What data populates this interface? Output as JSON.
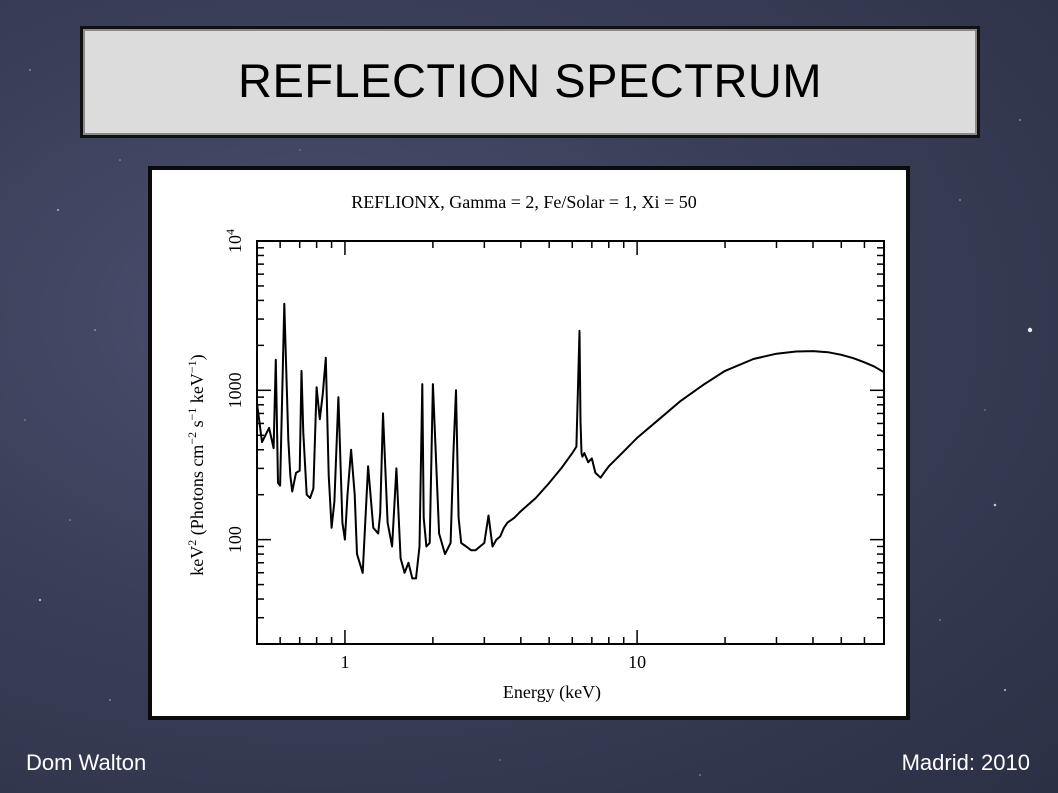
{
  "slide": {
    "title": "REFLECTION SPECTRUM",
    "author": "Dom Walton",
    "venue": "Madrid: 2010"
  },
  "colors": {
    "background": "#363b52",
    "title_box": "#dcdcdc",
    "text_light": "#ffffff",
    "plot_line": "#000000"
  },
  "chart_data": {
    "type": "line",
    "title": "REFLIONX, Gamma = 2, Fe/Solar = 1, Xi = 50",
    "xlabel": "Energy (keV)",
    "ylabel_parts": {
      "main": "keV",
      "sup1": "2",
      "mid": " (Photons cm",
      "sup2": "−2",
      "mid2": " s",
      "sup3": "−1",
      "mid3": " keV",
      "sup4": "−1",
      "end": ")"
    },
    "xscale": "log",
    "yscale": "log",
    "xlim": [
      0.5,
      70
    ],
    "ylim": [
      20,
      10000
    ],
    "x_tick_labels": [
      {
        "value": 1,
        "label": "1"
      },
      {
        "value": 10,
        "label": "10"
      }
    ],
    "y_tick_labels": [
      {
        "value": 100,
        "label": "100"
      },
      {
        "value": 1000,
        "label": "1000"
      },
      {
        "value": 10000,
        "label": "10",
        "sup": "4"
      }
    ],
    "grid": false,
    "series": [
      {
        "x": [
          0.5,
          0.52,
          0.55,
          0.57,
          0.58,
          0.59,
          0.6,
          0.62,
          0.64,
          0.65,
          0.66,
          0.68,
          0.7,
          0.71,
          0.72,
          0.74,
          0.76,
          0.78,
          0.8,
          0.82,
          0.84,
          0.86,
          0.88,
          0.9,
          0.92,
          0.95,
          0.98,
          1.0,
          1.02,
          1.05,
          1.08,
          1.1,
          1.15,
          1.2,
          1.25,
          1.3,
          1.32,
          1.35,
          1.4,
          1.45,
          1.5,
          1.55,
          1.6,
          1.65,
          1.7,
          1.75,
          1.8,
          1.84,
          1.86,
          1.9,
          1.95,
          2.0,
          2.1,
          2.2,
          2.3,
          2.35,
          2.4,
          2.45,
          2.5,
          2.6,
          2.7,
          2.8,
          2.9,
          3.0,
          3.1,
          3.2,
          3.3,
          3.4,
          3.5,
          3.6,
          3.8,
          4.0,
          4.5,
          5.0,
          5.5,
          6.0,
          6.2,
          6.35,
          6.4,
          6.45,
          6.5,
          6.6,
          6.8,
          7.0,
          7.2,
          7.5,
          7.8,
          8.0,
          9.0,
          10,
          12,
          14,
          17,
          20,
          25,
          30,
          35,
          40,
          45,
          50,
          55,
          60,
          65,
          70
        ],
        "y": [
          820,
          450,
          560,
          410,
          1600,
          240,
          230,
          3800,
          470,
          270,
          210,
          280,
          290,
          1350,
          520,
          200,
          190,
          220,
          1050,
          640,
          950,
          1650,
          270,
          120,
          180,
          900,
          130,
          100,
          200,
          400,
          200,
          80,
          60,
          310,
          120,
          110,
          150,
          700,
          130,
          90,
          300,
          75,
          60,
          70,
          55,
          55,
          90,
          1100,
          140,
          90,
          95,
          1100,
          110,
          80,
          95,
          380,
          1000,
          140,
          95,
          90,
          85,
          85,
          90,
          95,
          145,
          90,
          100,
          105,
          120,
          130,
          140,
          155,
          190,
          240,
          300,
          380,
          420,
          2500,
          620,
          380,
          360,
          380,
          330,
          350,
          280,
          260,
          290,
          310,
          390,
          480,
          650,
          840,
          1100,
          1350,
          1620,
          1760,
          1820,
          1830,
          1800,
          1730,
          1640,
          1540,
          1440,
          1320
        ]
      }
    ]
  }
}
